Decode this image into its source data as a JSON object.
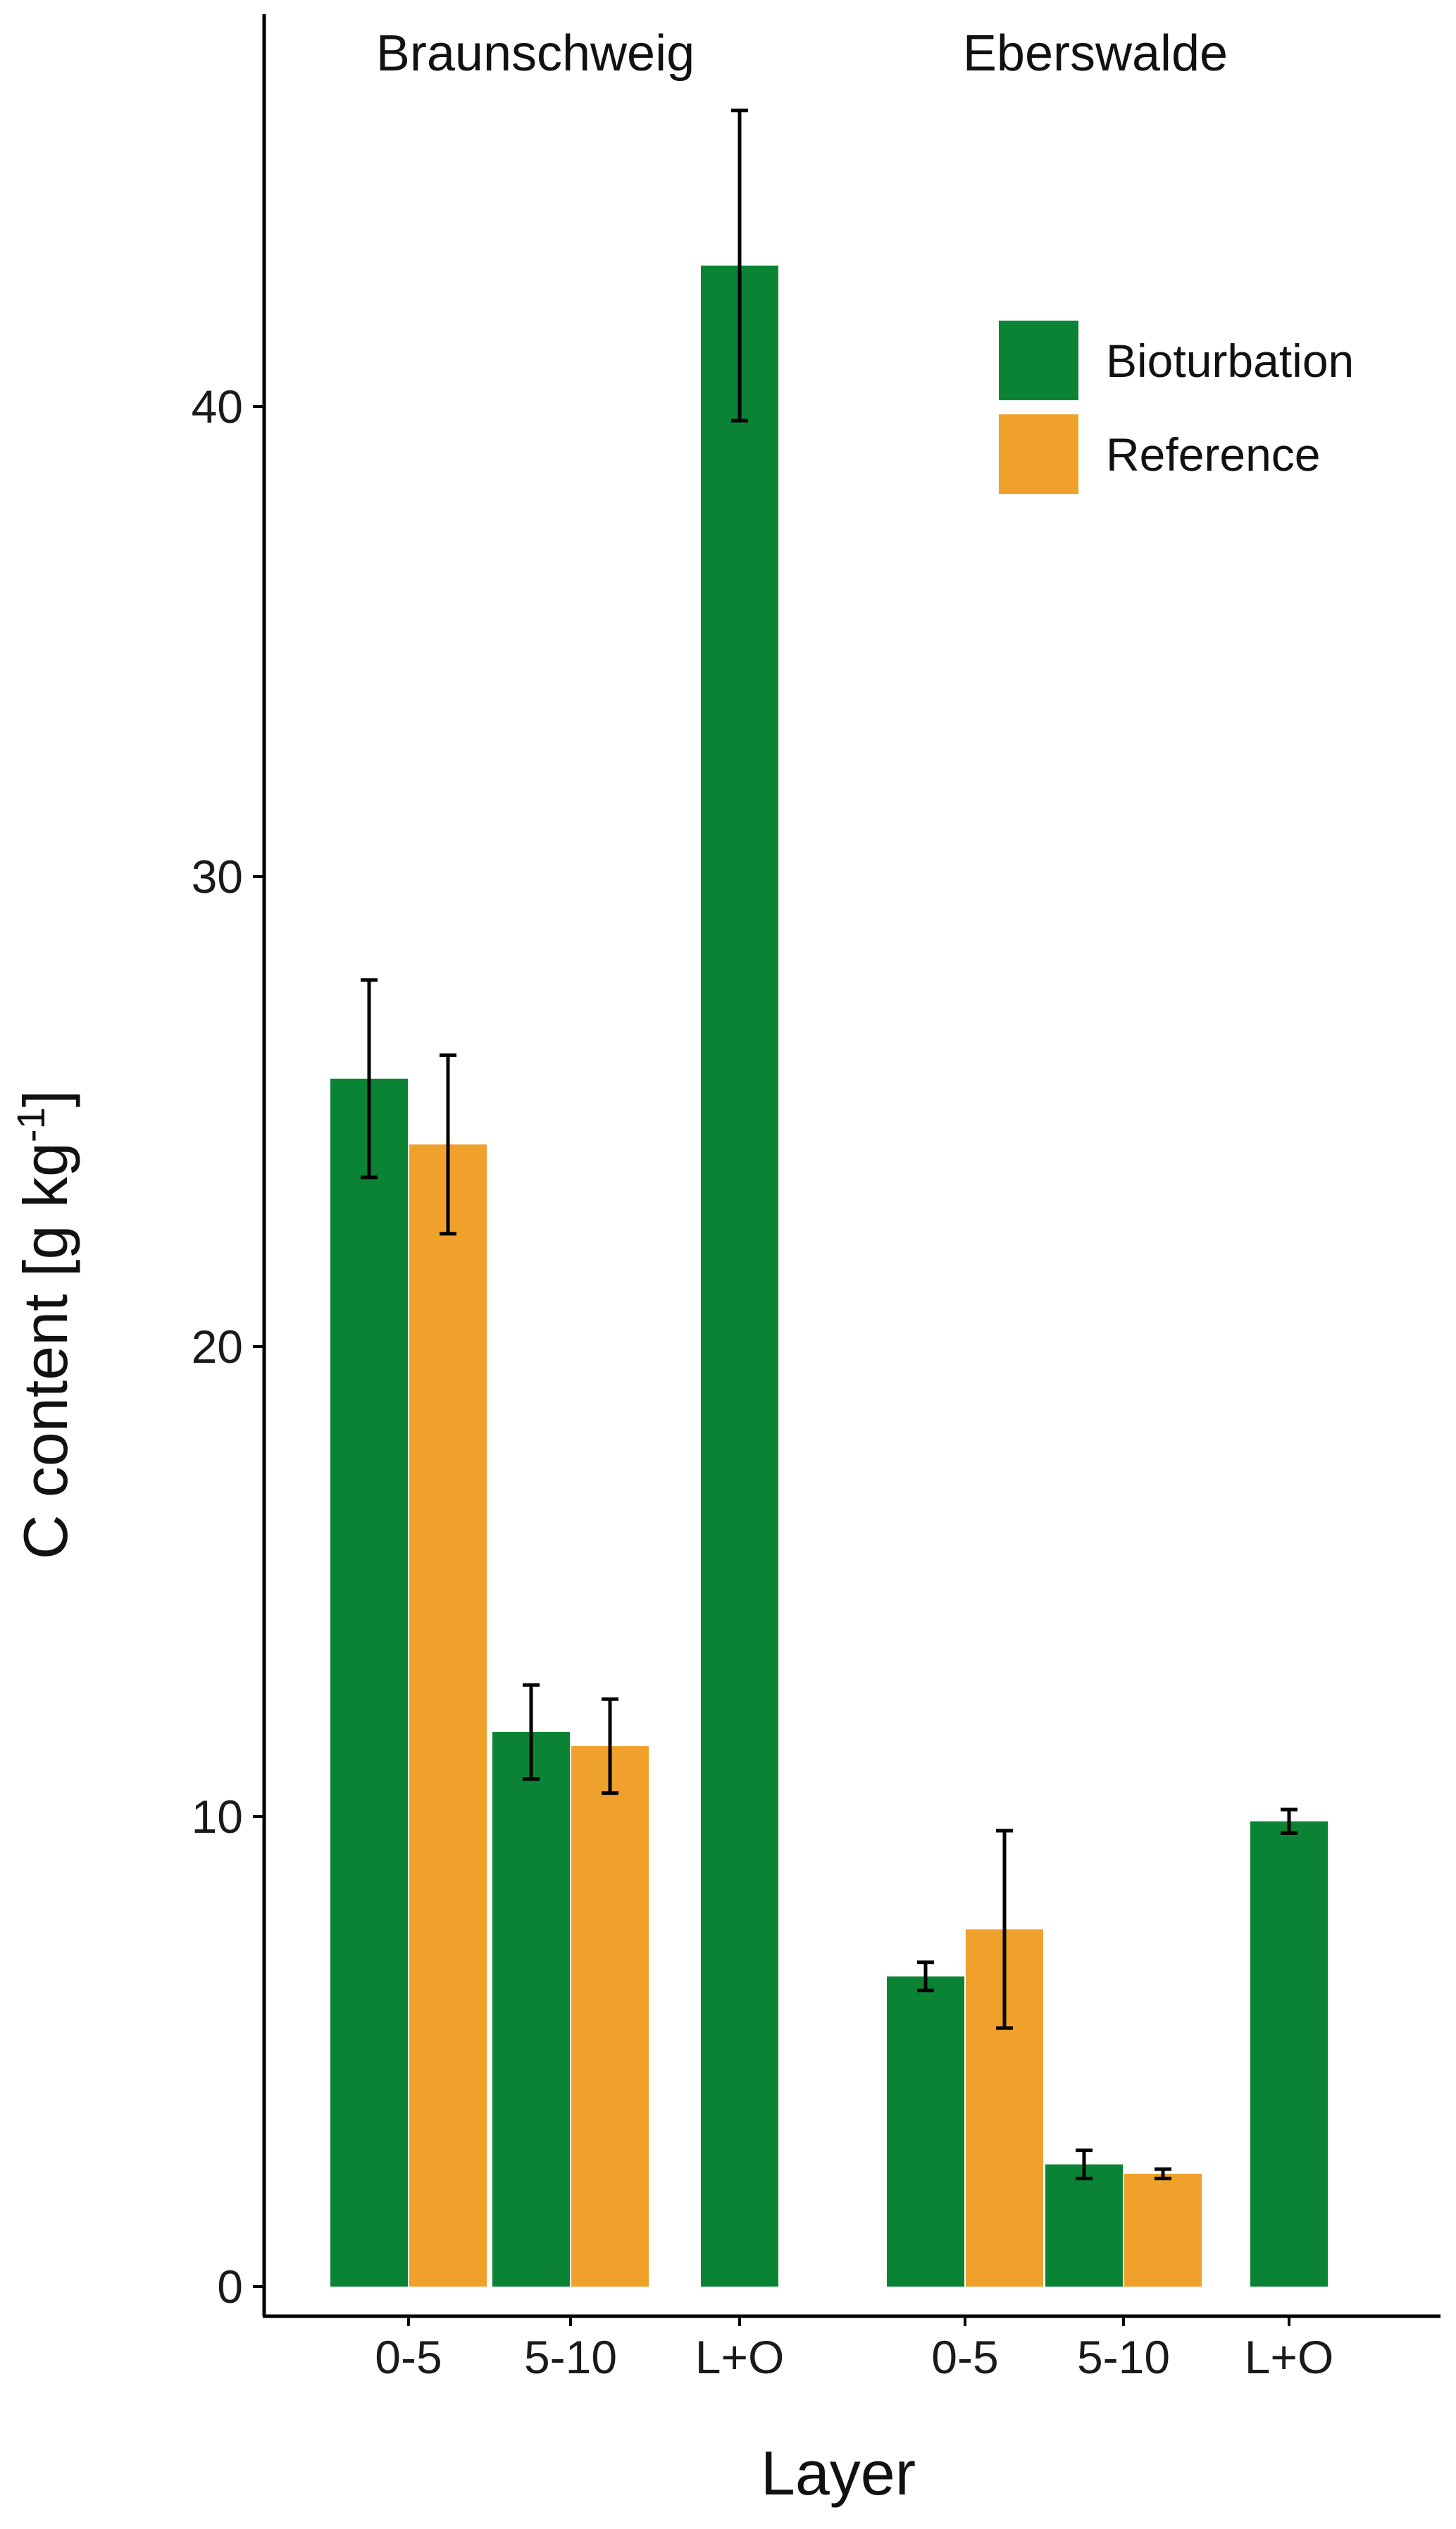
{
  "chart_data": {
    "type": "bar",
    "title": "",
    "xlabel": "Layer",
    "ylabel": {
      "main": "C content [g kg",
      "superscript": "-1",
      "suffix": "]"
    },
    "ylim": [
      0,
      48
    ],
    "yticks": [
      0,
      10,
      20,
      30,
      40
    ],
    "grid": false,
    "legend_position": "top-right",
    "colors": {
      "Bioturbation": "#0a8434",
      "Reference": "#efa12c",
      "axis": "#000000",
      "errorbar": "#000000"
    },
    "groups": [
      {
        "name": "Braunschweig",
        "categories": [
          "0-5",
          "5-10",
          "L+O"
        ]
      },
      {
        "name": "Eberswalde",
        "categories": [
          "0-5",
          "5-10",
          "L+O"
        ]
      }
    ],
    "series": [
      {
        "name": "Bioturbation",
        "values": [
          25.7,
          11.8,
          43.0,
          6.6,
          2.6,
          9.9
        ],
        "errors": [
          2.1,
          1.0,
          3.3,
          0.3,
          0.3,
          0.25
        ]
      },
      {
        "name": "Reference",
        "values": [
          24.3,
          11.5,
          null,
          7.6,
          2.4,
          null
        ],
        "errors": [
          1.9,
          1.0,
          null,
          2.1,
          0.1,
          null
        ]
      }
    ]
  }
}
